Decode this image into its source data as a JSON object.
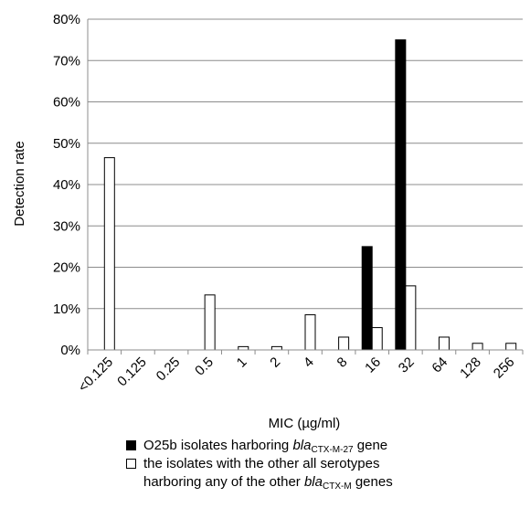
{
  "chart_data": {
    "type": "bar",
    "categories": [
      "<0.125",
      "0.125",
      "0.25",
      "0.5",
      "1",
      "2",
      "4",
      "8",
      "16",
      "32",
      "64",
      "128",
      "256"
    ],
    "series": [
      {
        "name": "O25b isolates harboring blaCTX-M-27 gene",
        "values": [
          0,
          0,
          0,
          0,
          0,
          0,
          0,
          0,
          25,
          75,
          0,
          0,
          0
        ],
        "color": "#000000"
      },
      {
        "name": "the isolates with the other all serotypes harboring any of the other blaCTX-M genes",
        "values": [
          46.5,
          0,
          0,
          13.3,
          0.8,
          0.8,
          8.5,
          3.1,
          5.4,
          15.5,
          3.1,
          1.6,
          1.6
        ],
        "color": "#ffffff"
      }
    ],
    "xlabel": "MIC (µg/ml)",
    "ylabel": "Detection rate",
    "ylim": [
      0,
      80
    ],
    "yticks": [
      "0%",
      "10%",
      "20%",
      "30%",
      "40%",
      "50%",
      "60%",
      "70%",
      "80%"
    ],
    "grid": true,
    "legend_position": "bottom"
  },
  "legend": {
    "item1": {
      "prefix": "O25b isolates harboring ",
      "gene": "bla",
      "sub": "CTX-M-27",
      "suffix": " gene"
    },
    "item2": {
      "line1": "the isolates with the other all serotypes",
      "prefix": "harboring any of the other ",
      "gene": "bla",
      "sub": "CTX-M",
      "suffix": " genes"
    }
  }
}
